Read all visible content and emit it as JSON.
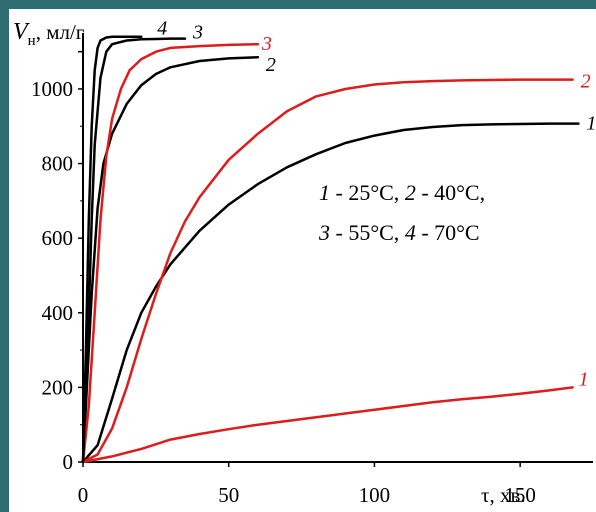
{
  "colors": {
    "background_border": "#2f6d73",
    "black": "#000000",
    "red": "#dd1c1c"
  },
  "chart_data": {
    "type": "line",
    "title": "",
    "ylabel": {
      "symbol": "V",
      "subscript": "н",
      "unit": ", мл/г"
    },
    "xlabel": "τ, хв.",
    "xlim": [
      0,
      175
    ],
    "ylim": [
      0,
      1150
    ],
    "x_ticks": [
      0,
      50,
      100,
      150
    ],
    "y_ticks": [
      0,
      200,
      400,
      600,
      800,
      1000,
      1100
    ],
    "x_tick_labels": [
      "0",
      "50",
      "100",
      "150"
    ],
    "y_tick_labels": [
      "0",
      "200",
      "400",
      "600",
      "800",
      "1000",
      ""
    ],
    "legend": {
      "placement": "center-right",
      "line1": [
        {
          "num": "1",
          "text": " - 25°C, "
        },
        {
          "num": "2",
          "text": " - 40°C,"
        }
      ],
      "line2": [
        {
          "num": "3",
          "text": " - 55°C, "
        },
        {
          "num": "4",
          "text": " - 70°C"
        }
      ]
    },
    "series": [
      {
        "label": "1",
        "color": "#000000",
        "x": [
          0,
          5,
          10,
          15,
          20,
          25,
          30,
          40,
          50,
          60,
          70,
          80,
          90,
          100,
          110,
          120,
          130,
          140,
          150,
          160,
          170
        ],
        "y": [
          0,
          45,
          170,
          300,
          400,
          470,
          530,
          620,
          690,
          745,
          790,
          825,
          855,
          875,
          890,
          898,
          903,
          905,
          906,
          907,
          907
        ]
      },
      {
        "label": "2",
        "color": "#dd1c1c",
        "x": [
          0,
          5,
          10,
          15,
          20,
          25,
          30,
          35,
          40,
          50,
          60,
          70,
          80,
          90,
          100,
          110,
          120,
          130,
          140,
          150,
          160,
          168
        ],
        "y": [
          0,
          20,
          90,
          200,
          330,
          450,
          560,
          645,
          710,
          810,
          880,
          940,
          980,
          1000,
          1012,
          1018,
          1021,
          1023,
          1024,
          1025,
          1025,
          1025
        ]
      },
      {
        "label": "1",
        "color": "#dd1c1c",
        "x": [
          0,
          10,
          20,
          30,
          40,
          50,
          60,
          70,
          80,
          90,
          100,
          110,
          120,
          130,
          140,
          150,
          160,
          168
        ],
        "y": [
          0,
          15,
          35,
          60,
          75,
          88,
          100,
          110,
          120,
          130,
          140,
          150,
          160,
          168,
          175,
          183,
          192,
          200
        ]
      },
      {
        "label": "2",
        "color": "#000000",
        "x": [
          0,
          3,
          5,
          7,
          10,
          15,
          20,
          25,
          30,
          40,
          50,
          60
        ],
        "y": [
          0,
          450,
          680,
          800,
          880,
          960,
          1010,
          1040,
          1058,
          1075,
          1082,
          1085
        ]
      },
      {
        "label": "3",
        "color": "#dd1c1c",
        "x": [
          0,
          2,
          4,
          6,
          8,
          10,
          13,
          16,
          20,
          25,
          30,
          40,
          50,
          60
        ],
        "y": [
          0,
          150,
          400,
          650,
          820,
          920,
          1000,
          1050,
          1080,
          1100,
          1110,
          1115,
          1118,
          1120
        ]
      },
      {
        "label": "3",
        "color": "#000000",
        "x": [
          0,
          2,
          3,
          4,
          6,
          8,
          10,
          15,
          20,
          25,
          30,
          35
        ],
        "y": [
          0,
          400,
          650,
          850,
          1030,
          1100,
          1120,
          1130,
          1133,
          1134,
          1135,
          1135
        ]
      },
      {
        "label": "4",
        "color": "#000000",
        "x": [
          0,
          1,
          2,
          3,
          4,
          5,
          6,
          8,
          10,
          15,
          20
        ],
        "y": [
          0,
          300,
          650,
          900,
          1050,
          1110,
          1130,
          1138,
          1140,
          1140,
          1140
        ]
      }
    ]
  }
}
